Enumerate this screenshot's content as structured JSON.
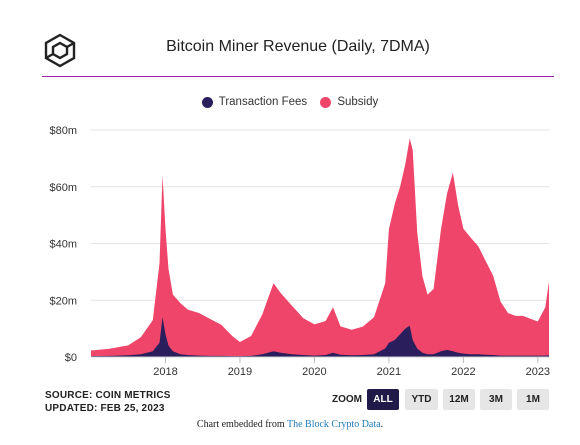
{
  "header": {
    "title": "Bitcoin Miner Revenue (Daily, 7DMA)",
    "logo_icon": "cube-logo-icon"
  },
  "legend": [
    {
      "label": "Transaction Fees",
      "color": "#2a1f5c"
    },
    {
      "label": "Subsidy",
      "color": "#f0456a"
    }
  ],
  "chart_data": {
    "type": "area",
    "stacked": true,
    "title": "Bitcoin Miner Revenue (Daily, 7DMA)",
    "xlabel": "",
    "ylabel": "",
    "x_ticks": [
      "2018",
      "2019",
      "2020",
      "2021",
      "2022",
      "2023"
    ],
    "y_ticks": [
      "$0",
      "$20m",
      "$40m",
      "$60m",
      "$80m"
    ],
    "ylim": [
      0,
      80
    ],
    "grid": true,
    "legend_position": "top",
    "x": [
      2017.0,
      2017.25,
      2017.5,
      2017.67,
      2017.83,
      2017.92,
      2017.96,
      2018.0,
      2018.04,
      2018.1,
      2018.2,
      2018.3,
      2018.45,
      2018.6,
      2018.75,
      2018.9,
      2019.0,
      2019.15,
      2019.3,
      2019.45,
      2019.55,
      2019.7,
      2019.85,
      2020.0,
      2020.15,
      2020.25,
      2020.35,
      2020.5,
      2020.65,
      2020.8,
      2020.95,
      2021.0,
      2021.08,
      2021.15,
      2021.22,
      2021.28,
      2021.32,
      2021.38,
      2021.45,
      2021.52,
      2021.6,
      2021.7,
      2021.78,
      2021.86,
      2021.93,
      2022.0,
      2022.1,
      2022.2,
      2022.3,
      2022.4,
      2022.5,
      2022.6,
      2022.7,
      2022.8,
      2022.9,
      2023.0,
      2023.1,
      2023.15
    ],
    "series": [
      {
        "name": "Subsidy",
        "color": "#f0456a",
        "values": [
          2,
          2.5,
          3.5,
          6,
          11,
          28,
          50,
          37,
          27,
          20,
          18,
          16,
          15,
          13,
          11,
          7,
          5,
          7,
          14,
          24,
          21,
          17,
          13,
          11,
          12,
          16,
          10,
          9,
          10,
          13,
          23,
          40,
          48,
          52,
          58,
          66,
          67,
          41,
          27,
          21,
          23,
          43,
          55,
          63,
          52,
          44,
          41,
          38,
          33,
          28,
          19,
          15,
          14,
          14,
          13,
          12,
          17,
          26
        ]
      },
      {
        "name": "Transaction Fees",
        "color": "#2a1f5c",
        "values": [
          0.3,
          0.4,
          0.6,
          1,
          2,
          5,
          14,
          8,
          4,
          2,
          1,
          0.7,
          0.5,
          0.4,
          0.4,
          0.3,
          0.3,
          0.4,
          1,
          2,
          1.5,
          1,
          0.7,
          0.5,
          0.7,
          1.5,
          0.8,
          0.6,
          0.7,
          1,
          3,
          5,
          6,
          8,
          10,
          11,
          6,
          3,
          1.5,
          1,
          1,
          2,
          2.5,
          2,
          1.5,
          1.2,
          1,
          1,
          0.8,
          0.7,
          0.5,
          0.5,
          0.5,
          0.5,
          0.5,
          0.5,
          0.5,
          0.6
        ]
      }
    ]
  },
  "footer": {
    "source": "SOURCE: COIN METRICS",
    "updated": "UPDATED: FEB 25, 2023",
    "zoom_label": "ZOOM",
    "zoom_buttons": [
      "ALL",
      "YTD",
      "12M",
      "3M",
      "1M"
    ],
    "zoom_active": "ALL",
    "embed_prefix": "Chart embedded from ",
    "embed_link": "The Block Crypto Data",
    "embed_suffix": "."
  }
}
